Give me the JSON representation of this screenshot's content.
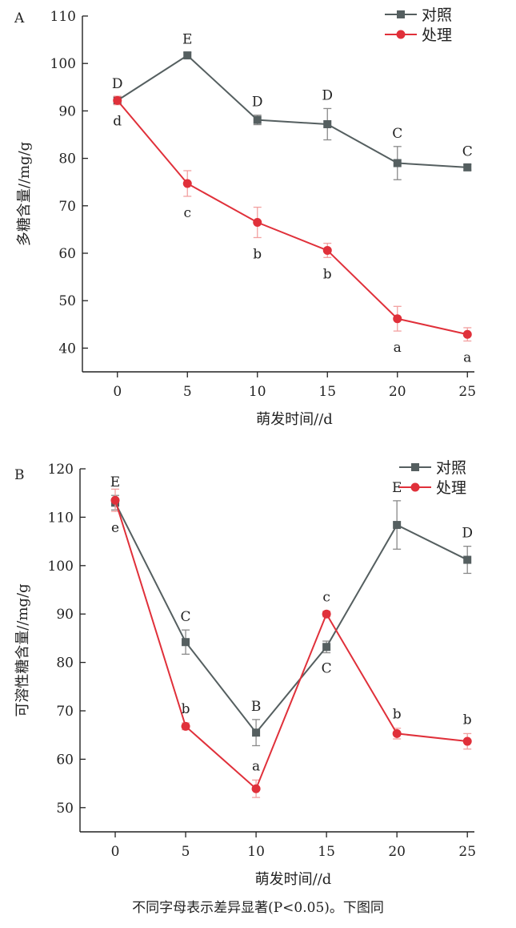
{
  "caption": "不同字母表示差异显著(P<0.05)。下图同",
  "colors": {
    "control": "#555f60",
    "treatment": "#e0303a",
    "error_control": "#8a8a8a",
    "error_treatment": "#f2a0a0",
    "axis": "#222222"
  },
  "chart_data": [
    {
      "type": "line",
      "panel": "A",
      "xlabel": "萌发时间//d",
      "ylabel": "多糖含量//mg/g",
      "x": [
        0,
        5,
        10,
        15,
        20,
        25
      ],
      "xlim": [
        -2.5,
        25.5
      ],
      "ylim": [
        35,
        110
      ],
      "yticks": [
        40,
        50,
        60,
        70,
        80,
        90,
        100,
        110
      ],
      "xticks": [
        0,
        5,
        10,
        15,
        20,
        25
      ],
      "grid": false,
      "legend_position": "top-right",
      "series": [
        {
          "name": "对照",
          "marker": "square",
          "color": "#555f60",
          "values": [
            92.2,
            101.7,
            88.1,
            87.2,
            79.0,
            78.1
          ],
          "errors": [
            0.7,
            0.6,
            1.0,
            3.3,
            3.5,
            0.6
          ],
          "labels": [
            "D",
            "E",
            "D",
            "D",
            "C",
            "C"
          ],
          "label_pos": [
            "above",
            "above",
            "above",
            "above",
            "above",
            "above"
          ]
        },
        {
          "name": "处理",
          "marker": "circle",
          "color": "#e0303a",
          "values": [
            92.2,
            74.7,
            66.5,
            60.6,
            46.2,
            42.9
          ],
          "errors": [
            0.9,
            2.7,
            3.2,
            1.5,
            2.6,
            1.4
          ],
          "labels": [
            "d",
            "c",
            "b",
            "b",
            "a",
            "a"
          ],
          "label_pos": [
            "below",
            "below",
            "below",
            "below",
            "below",
            "below"
          ]
        }
      ]
    },
    {
      "type": "line",
      "panel": "B",
      "xlabel": "萌发时间//d",
      "ylabel": "可溶性糖含量//mg/g",
      "x": [
        0,
        5,
        10,
        15,
        20,
        25
      ],
      "xlim": [
        -2.5,
        25.5
      ],
      "ylim": [
        45,
        120
      ],
      "yticks": [
        50,
        60,
        70,
        80,
        90,
        100,
        110,
        120
      ],
      "xticks": [
        0,
        5,
        10,
        15,
        20,
        25
      ],
      "grid": false,
      "legend_position": "top-right",
      "series": [
        {
          "name": "对照",
          "marker": "square",
          "color": "#555f60",
          "values": [
            113.0,
            84.2,
            65.5,
            83.2,
            108.4,
            101.2
          ],
          "errors": [
            1.5,
            2.5,
            2.7,
            1.2,
            5.0,
            2.8
          ],
          "labels": [
            "E",
            "C",
            "B",
            "C",
            "E",
            "D"
          ],
          "label_pos": [
            "above",
            "above",
            "above",
            "below",
            "above",
            "above"
          ]
        },
        {
          "name": "处理",
          "marker": "circle",
          "color": "#e0303a",
          "values": [
            113.5,
            66.8,
            53.9,
            90.0,
            65.3,
            63.7
          ],
          "errors": [
            2.3,
            0.7,
            1.8,
            0.6,
            1.1,
            1.6
          ],
          "labels": [
            "e",
            "b",
            "a",
            "c",
            "b",
            "b"
          ],
          "label_pos": [
            "below",
            "above",
            "above",
            "above",
            "above",
            "above"
          ]
        }
      ]
    }
  ]
}
